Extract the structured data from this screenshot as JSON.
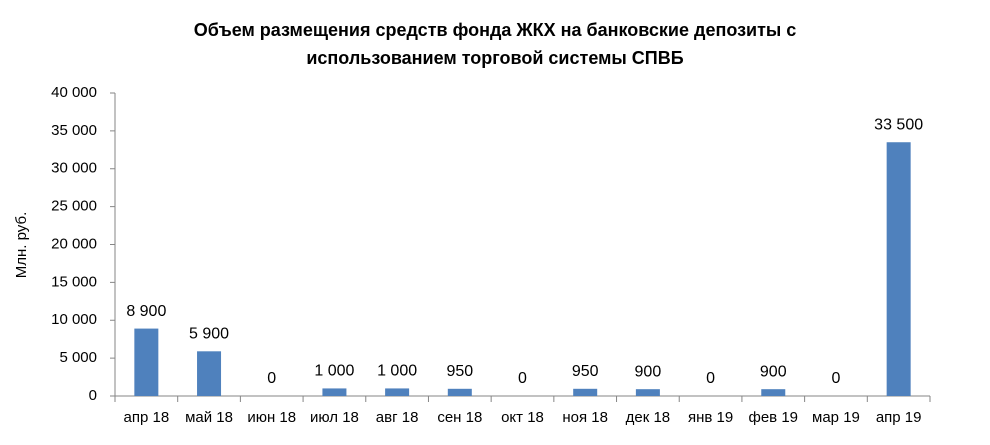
{
  "chart_data": {
    "type": "bar",
    "title": "Объем размещения средств фонда ЖКХ на банковские депозиты с использованием торговой системы СПВБ",
    "y_label": "Млн. руб.",
    "categories": [
      "апр 18",
      "май 18",
      "июн 18",
      "июл 18",
      "авг 18",
      "сен 18",
      "окт 18",
      "ноя 18",
      "дек 18",
      "янв 19",
      "фев 19",
      "мар 19",
      "апр 19"
    ],
    "values": [
      8900,
      5900,
      0,
      1000,
      1000,
      950,
      0,
      950,
      900,
      0,
      900,
      0,
      33500
    ],
    "value_labels": [
      "8 900",
      "5 900",
      "0",
      "1 000",
      "1 000",
      "950",
      "0",
      "950",
      "900",
      "0",
      "900",
      "0",
      "33 500"
    ],
    "color": "#4f81bd",
    "ylim": [
      0,
      40000
    ],
    "yticks": [
      0,
      {
        "value": 5000,
        "label": "5 000"
      },
      {
        "value": 10000,
        "label": "10 000"
      },
      {
        "value": 15000,
        "label": "15 000"
      },
      {
        "value": 20000,
        "label": "20 000"
      },
      {
        "value": 25000,
        "label": "25 000"
      },
      {
        "value": 30000,
        "label": "30 000"
      },
      {
        "value": 35000,
        "label": "35 000"
      },
      {
        "value": 40000,
        "label": "40 000"
      }
    ],
    "grid": false
  }
}
